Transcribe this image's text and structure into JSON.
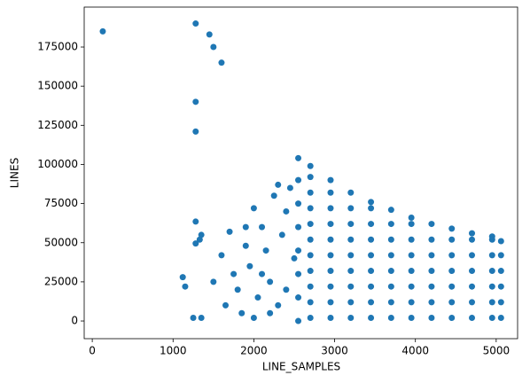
{
  "chart_data": {
    "type": "scatter",
    "x_label": "LINE_SAMPLES",
    "y_label": "LINES",
    "color": "#1f77b4",
    "xlim": [
      -100,
      5265
    ],
    "ylim": [
      -11300,
      200500
    ],
    "xticks": [
      0,
      1000,
      2000,
      3000,
      4000,
      5000
    ],
    "yticks": [
      0,
      25000,
      50000,
      75000,
      100000,
      125000,
      150000,
      175000
    ],
    "x": [
      130,
      1280,
      1450,
      1500,
      1600,
      1280,
      1280,
      1280,
      1280,
      1330,
      1350,
      1120,
      1150,
      1250,
      1350,
      1500,
      1600,
      1650,
      1700,
      1750,
      1800,
      1850,
      1900,
      1950,
      2000,
      2050,
      2100,
      2150,
      2200,
      2250,
      2300,
      2350,
      2400,
      2450,
      2500,
      2200,
      2000,
      1900,
      2100,
      2300,
      2400,
      2550,
      2550,
      2550,
      2550,
      2550,
      2550,
      2550,
      2550,
      2700,
      2700,
      2700,
      2700,
      2700,
      2700,
      2700,
      2700,
      2700,
      2700,
      2700,
      2950,
      2950,
      2950,
      2950,
      2950,
      2950,
      2950,
      2950,
      2950,
      2950,
      3200,
      3200,
      3200,
      3200,
      3200,
      3200,
      3200,
      3200,
      3200,
      3450,
      3450,
      3450,
      3450,
      3450,
      3450,
      3450,
      3450,
      3450,
      3700,
      3700,
      3700,
      3700,
      3700,
      3700,
      3700,
      3700,
      3950,
      3950,
      3950,
      3950,
      3950,
      3950,
      3950,
      3950,
      4200,
      4200,
      4200,
      4200,
      4200,
      4200,
      4200,
      4450,
      4450,
      4450,
      4450,
      4450,
      4450,
      4450,
      4700,
      4700,
      4700,
      4700,
      4700,
      4700,
      4700,
      4950,
      4950,
      4950,
      4950,
      4950,
      4950,
      4950,
      5060,
      5060,
      5060,
      5060,
      5060,
      5060
    ],
    "values": [
      185000,
      190000,
      183000,
      175000,
      165000,
      140000,
      121000,
      63500,
      49500,
      52000,
      55000,
      28000,
      22000,
      2000,
      2000,
      25000,
      42000,
      10000,
      57000,
      30000,
      20000,
      5000,
      48000,
      35000,
      72000,
      15000,
      60000,
      45000,
      25000,
      80000,
      87000,
      55000,
      70000,
      85000,
      40000,
      5000,
      2000,
      60000,
      30000,
      10000,
      20000,
      0,
      15000,
      30000,
      45000,
      60000,
      75000,
      90000,
      104000,
      2000,
      12000,
      22000,
      32000,
      42000,
      52000,
      62000,
      72000,
      82000,
      92000,
      99000,
      2000,
      12000,
      22000,
      32000,
      42000,
      52000,
      62000,
      72000,
      82000,
      90000,
      2000,
      12000,
      22000,
      32000,
      42000,
      52000,
      62000,
      72000,
      82000,
      2000,
      12000,
      22000,
      32000,
      42000,
      52000,
      62000,
      72000,
      76000,
      2000,
      12000,
      22000,
      32000,
      42000,
      52000,
      62000,
      71000,
      2000,
      12000,
      22000,
      32000,
      42000,
      52000,
      62000,
      66000,
      2000,
      12000,
      22000,
      32000,
      42000,
      52000,
      62000,
      2000,
      12000,
      22000,
      32000,
      42000,
      52000,
      59000,
      2000,
      12000,
      22000,
      32000,
      42000,
      52000,
      56000,
      2000,
      12000,
      22000,
      32000,
      42000,
      52000,
      54000,
      2000,
      12000,
      22000,
      32000,
      42000,
      51000
    ]
  }
}
